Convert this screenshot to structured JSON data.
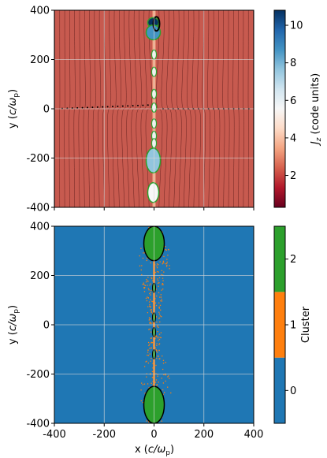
{
  "chart_data": [
    {
      "type": "heatmap",
      "panel": "top",
      "ylabel_prefix": "y (",
      "ylabel_unit": "c/ω",
      "ylabel_unit_sub": "p",
      "ylabel_suffix": ")",
      "xlim": [
        -400,
        400
      ],
      "ylim": [
        -400,
        400
      ],
      "xticks": [
        -400,
        -200,
        0,
        200,
        400
      ],
      "yticks": [
        -400,
        -200,
        0,
        200,
        400
      ],
      "xticklabels_shown": false,
      "grid": true,
      "colorbar": {
        "label_var": "J",
        "label_sub": "z",
        "label_unit": " (code units)",
        "range": [
          0.3,
          10.8
        ],
        "ticks": [
          2,
          4,
          6,
          8,
          10
        ],
        "colormap": "RdBu",
        "colors": [
          "#67001f",
          "#b2182b",
          "#d6604d",
          "#f4a582",
          "#fddbc7",
          "#f7f7f7",
          "#d1e5f0",
          "#92c5de",
          "#4393c3",
          "#2166ac",
          "#053061"
        ]
      },
      "background_color": "#c75a4f",
      "current_sheet_x": 0,
      "structures": [
        {
          "y_range": [
            330,
            370
          ],
          "color": "#053061",
          "kind": "plasmoid"
        },
        {
          "y_range": [
            280,
            340
          ],
          "color": "#4393c3",
          "kind": "plasmoid"
        },
        {
          "y_range": [
            -300,
            -380
          ],
          "color": "#f7f7f7",
          "kind": "plasmoid"
        },
        {
          "y_range": [
            -160,
            -260
          ],
          "color": "#92c5de",
          "kind": "plasmoid"
        }
      ],
      "cluster_contour_color": "#2ca02c",
      "particle_track_color": "#000000"
    },
    {
      "type": "heatmap",
      "panel": "bottom",
      "xlabel_prefix": "x (",
      "xlabel_unit": "c/ω",
      "xlabel_unit_sub": "p",
      "xlabel_suffix": ")",
      "ylabel_prefix": "y (",
      "ylabel_unit": "c/ω",
      "ylabel_unit_sub": "p",
      "ylabel_suffix": ")",
      "xlim": [
        -400,
        400
      ],
      "ylim": [
        -400,
        400
      ],
      "xticks": [
        -400,
        -200,
        0,
        200,
        400
      ],
      "yticks": [
        -400,
        -200,
        0,
        200,
        400
      ],
      "grid": true,
      "colorbar": {
        "label": "Cluster",
        "categories": [
          {
            "value": 0,
            "label": "0",
            "color": "#1f77b4"
          },
          {
            "value": 1,
            "label": "1",
            "color": "#ff7f0e"
          },
          {
            "value": 2,
            "label": "2",
            "color": "#2ca02c"
          }
        ]
      },
      "background_color": "#1f77b4",
      "current_sheet_x": 0,
      "cluster_2_regions": [
        {
          "y_range": [
            260,
            400
          ]
        },
        {
          "y_range": [
            -250,
            -400
          ]
        }
      ]
    }
  ]
}
